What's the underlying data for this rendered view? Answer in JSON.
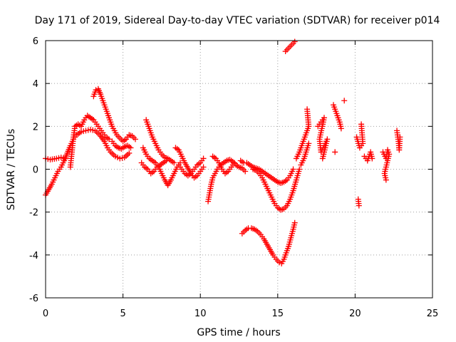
{
  "chart_data": {
    "type": "scatter",
    "title": "Day 171 of 2019, Sidereal Day-to-day VTEC variation (SDTVAR) for receiver p014",
    "xlabel": "GPS time / hours",
    "ylabel": "SDTVAR / TECUs",
    "xlim": [
      0,
      25
    ],
    "ylim": [
      -6,
      6
    ],
    "xticks": [
      0,
      5,
      10,
      15,
      20,
      25
    ],
    "yticks": [
      -6,
      -4,
      -2,
      0,
      2,
      4,
      6
    ],
    "grid": true,
    "marker": "+",
    "color": "#ff0000",
    "series": [
      {
        "name": "p014",
        "points": [
          [
            0.0,
            0.5
          ],
          [
            0.3,
            0.45
          ],
          [
            0.7,
            0.5
          ],
          [
            1.0,
            0.55
          ],
          [
            1.3,
            0.5
          ],
          [
            0.0,
            -1.2
          ],
          [
            0.2,
            -0.95
          ],
          [
            0.4,
            -0.7
          ],
          [
            0.6,
            -0.4
          ],
          [
            0.8,
            -0.1
          ],
          [
            1.0,
            0.1
          ],
          [
            1.2,
            0.4
          ],
          [
            1.4,
            0.75
          ],
          [
            1.6,
            1.1
          ],
          [
            1.8,
            1.4
          ],
          [
            2.0,
            1.6
          ],
          [
            2.3,
            1.75
          ],
          [
            2.6,
            1.8
          ],
          [
            2.9,
            1.85
          ],
          [
            3.2,
            1.8
          ],
          [
            3.5,
            1.6
          ],
          [
            3.8,
            1.3
          ],
          [
            4.0,
            1.0
          ],
          [
            4.2,
            0.8
          ],
          [
            4.5,
            0.6
          ],
          [
            4.8,
            0.5
          ],
          [
            5.1,
            0.55
          ],
          [
            5.4,
            0.75
          ],
          [
            1.6,
            0.1
          ],
          [
            1.7,
            0.8
          ],
          [
            1.8,
            1.5
          ],
          [
            1.9,
            2.0
          ],
          [
            2.1,
            2.1
          ],
          [
            2.3,
            2.0
          ],
          [
            2.5,
            2.3
          ],
          [
            2.7,
            2.5
          ],
          [
            2.9,
            2.4
          ],
          [
            3.1,
            2.3
          ],
          [
            3.3,
            2.1
          ],
          [
            3.5,
            1.9
          ],
          [
            3.7,
            1.7
          ],
          [
            3.9,
            1.5
          ],
          [
            4.1,
            1.4
          ],
          [
            3.1,
            3.4
          ],
          [
            3.25,
            3.7
          ],
          [
            3.4,
            3.75
          ],
          [
            3.55,
            3.5
          ],
          [
            3.7,
            3.2
          ],
          [
            3.85,
            2.9
          ],
          [
            4.0,
            2.6
          ],
          [
            4.15,
            2.3
          ],
          [
            4.3,
            2.0
          ],
          [
            4.45,
            1.8
          ],
          [
            4.6,
            1.6
          ],
          [
            4.8,
            1.45
          ],
          [
            5.0,
            1.3
          ],
          [
            5.2,
            1.4
          ],
          [
            5.4,
            1.6
          ],
          [
            5.6,
            1.55
          ],
          [
            5.8,
            1.4
          ],
          [
            4.3,
            1.3
          ],
          [
            4.5,
            1.1
          ],
          [
            4.7,
            1.0
          ],
          [
            4.9,
            0.95
          ],
          [
            5.1,
            1.05
          ],
          [
            5.3,
            1.1
          ],
          [
            5.5,
            1.0
          ],
          [
            6.5,
            2.3
          ],
          [
            6.7,
            1.9
          ],
          [
            6.9,
            1.5
          ],
          [
            7.1,
            1.2
          ],
          [
            7.3,
            0.9
          ],
          [
            7.5,
            0.7
          ],
          [
            7.7,
            0.55
          ],
          [
            7.9,
            0.5
          ],
          [
            8.1,
            0.4
          ],
          [
            8.3,
            0.3
          ],
          [
            6.3,
            1.0
          ],
          [
            6.5,
            0.7
          ],
          [
            6.7,
            0.5
          ],
          [
            6.9,
            0.4
          ],
          [
            7.1,
            0.3
          ],
          [
            7.3,
            0.1
          ],
          [
            7.5,
            -0.2
          ],
          [
            7.7,
            -0.5
          ],
          [
            7.9,
            -0.75
          ],
          [
            8.1,
            -0.5
          ],
          [
            8.3,
            -0.2
          ],
          [
            8.5,
            0.1
          ],
          [
            8.7,
            0.3
          ],
          [
            6.2,
            0.3
          ],
          [
            6.4,
            0.1
          ],
          [
            6.6,
            0.0
          ],
          [
            6.8,
            -0.2
          ],
          [
            7.0,
            -0.1
          ],
          [
            7.2,
            0.1
          ],
          [
            7.4,
            0.2
          ],
          [
            7.6,
            0.3
          ],
          [
            7.8,
            0.4
          ],
          [
            8.4,
            1.0
          ],
          [
            8.6,
            0.9
          ],
          [
            8.8,
            0.6
          ],
          [
            9.0,
            0.3
          ],
          [
            9.2,
            0.05
          ],
          [
            9.4,
            -0.2
          ],
          [
            9.6,
            -0.4
          ],
          [
            9.8,
            -0.3
          ],
          [
            10.0,
            -0.1
          ],
          [
            10.2,
            0.1
          ],
          [
            8.6,
            0.2
          ],
          [
            8.8,
            0.0
          ],
          [
            9.0,
            -0.2
          ],
          [
            9.2,
            -0.3
          ],
          [
            9.4,
            -0.2
          ],
          [
            9.6,
            0.0
          ],
          [
            9.8,
            0.2
          ],
          [
            10.0,
            0.3
          ],
          [
            10.2,
            0.5
          ],
          [
            10.5,
            -1.5
          ],
          [
            10.6,
            -1.1
          ],
          [
            10.7,
            -0.7
          ],
          [
            10.8,
            -0.4
          ],
          [
            10.95,
            -0.2
          ],
          [
            11.1,
            0.0
          ],
          [
            11.3,
            0.2
          ],
          [
            11.5,
            0.3
          ],
          [
            11.7,
            0.4
          ],
          [
            11.9,
            0.45
          ],
          [
            12.1,
            0.35
          ],
          [
            12.3,
            0.2
          ],
          [
            12.5,
            0.1
          ],
          [
            12.7,
            0.05
          ],
          [
            12.9,
            -0.1
          ],
          [
            10.8,
            0.6
          ],
          [
            11.0,
            0.5
          ],
          [
            11.2,
            0.3
          ],
          [
            11.4,
            0.0
          ],
          [
            11.6,
            -0.2
          ],
          [
            11.8,
            -0.1
          ],
          [
            12.0,
            0.1
          ],
          [
            12.2,
            0.3
          ],
          [
            12.6,
            0.4
          ],
          [
            12.8,
            0.3
          ],
          [
            13.0,
            0.3
          ],
          [
            13.2,
            0.2
          ],
          [
            13.4,
            0.1
          ],
          [
            13.6,
            0.05
          ],
          [
            13.8,
            0.0
          ],
          [
            14.0,
            -0.1
          ],
          [
            14.2,
            -0.2
          ],
          [
            14.4,
            -0.3
          ],
          [
            14.6,
            -0.4
          ],
          [
            14.8,
            -0.5
          ],
          [
            15.0,
            -0.6
          ],
          [
            15.2,
            -0.65
          ],
          [
            15.4,
            -0.6
          ],
          [
            15.6,
            -0.5
          ],
          [
            15.8,
            -0.3
          ],
          [
            16.0,
            0.0
          ],
          [
            13.4,
            0.0
          ],
          [
            13.6,
            -0.05
          ],
          [
            13.8,
            -0.2
          ],
          [
            14.0,
            -0.4
          ],
          [
            14.2,
            -0.7
          ],
          [
            14.4,
            -1.0
          ],
          [
            14.6,
            -1.3
          ],
          [
            14.8,
            -1.6
          ],
          [
            15.0,
            -1.8
          ],
          [
            15.2,
            -1.9
          ],
          [
            15.4,
            -1.85
          ],
          [
            15.6,
            -1.7
          ],
          [
            15.8,
            -1.4
          ],
          [
            16.0,
            -1.0
          ],
          [
            16.2,
            -0.5
          ],
          [
            16.4,
            0.0
          ],
          [
            12.7,
            -3.0
          ],
          [
            12.9,
            -2.85
          ],
          [
            13.1,
            -2.75
          ],
          [
            13.3,
            -2.75
          ],
          [
            13.5,
            -2.8
          ],
          [
            13.7,
            -2.9
          ],
          [
            13.9,
            -3.05
          ],
          [
            14.1,
            -3.25
          ],
          [
            14.3,
            -3.5
          ],
          [
            14.5,
            -3.75
          ],
          [
            14.7,
            -4.0
          ],
          [
            14.9,
            -4.2
          ],
          [
            15.1,
            -4.35
          ],
          [
            15.25,
            -4.4
          ],
          [
            15.4,
            -4.2
          ],
          [
            15.55,
            -3.9
          ],
          [
            15.7,
            -3.6
          ],
          [
            15.85,
            -3.2
          ],
          [
            16.0,
            -2.8
          ],
          [
            16.1,
            -2.5
          ],
          [
            15.5,
            5.5
          ],
          [
            15.7,
            5.65
          ],
          [
            15.9,
            5.8
          ],
          [
            16.1,
            5.95
          ],
          [
            16.2,
            0.5
          ],
          [
            16.4,
            0.8
          ],
          [
            16.6,
            1.2
          ],
          [
            16.8,
            1.6
          ],
          [
            17.0,
            2.0
          ],
          [
            16.9,
            2.8
          ],
          [
            16.5,
            0.2
          ],
          [
            16.7,
            0.5
          ],
          [
            17.0,
            1.2
          ],
          [
            17.6,
            2.0
          ],
          [
            17.8,
            2.2
          ],
          [
            18.0,
            2.4
          ],
          [
            17.7,
            1.4
          ],
          [
            17.8,
            0.8
          ],
          [
            18.0,
            1.1
          ],
          [
            18.2,
            1.4
          ],
          [
            17.9,
            0.5
          ],
          [
            18.6,
            3.0
          ],
          [
            18.8,
            2.6
          ],
          [
            19.0,
            2.2
          ],
          [
            19.1,
            1.9
          ],
          [
            18.7,
            0.8
          ],
          [
            19.3,
            3.2
          ],
          [
            20.1,
            1.5
          ],
          [
            20.3,
            1.0
          ],
          [
            20.5,
            1.2
          ],
          [
            20.4,
            2.1
          ],
          [
            20.6,
            0.6
          ],
          [
            20.8,
            0.4
          ],
          [
            21.0,
            0.8
          ],
          [
            21.1,
            0.5
          ],
          [
            20.2,
            -1.4
          ],
          [
            20.25,
            -1.7
          ],
          [
            21.8,
            0.8
          ],
          [
            22.0,
            0.5
          ],
          [
            22.1,
            0.9
          ],
          [
            22.2,
            0.7
          ],
          [
            21.9,
            -0.2
          ],
          [
            22.0,
            -0.5
          ],
          [
            22.7,
            1.8
          ],
          [
            22.8,
            1.3
          ],
          [
            22.85,
            0.9
          ],
          [
            22.9,
            1.5
          ]
        ]
      }
    ]
  }
}
